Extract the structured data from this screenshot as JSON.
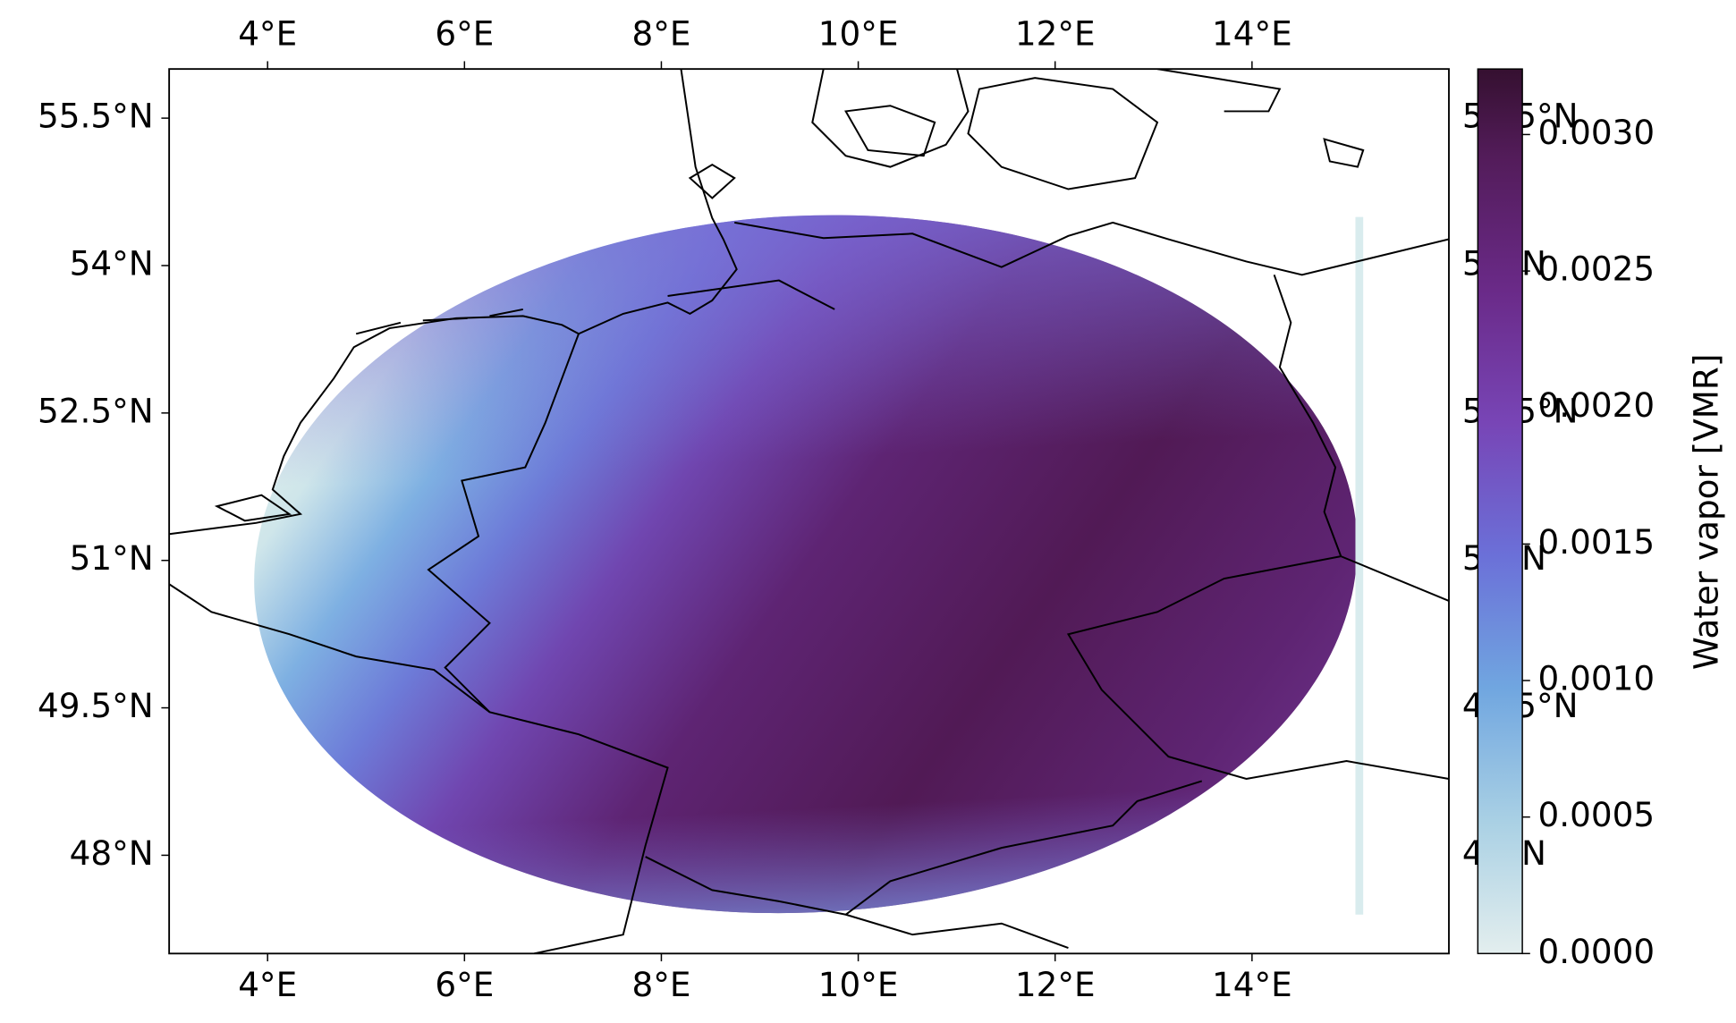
{
  "chart_data": {
    "type": "map",
    "xlim": [
      3,
      16
    ],
    "ylim": [
      47,
      56
    ],
    "xticks": [
      {
        "value": 4,
        "label": "4°E"
      },
      {
        "value": 6,
        "label": "6°E"
      },
      {
        "value": 8,
        "label": "8°E"
      },
      {
        "value": 10,
        "label": "10°E"
      },
      {
        "value": 12,
        "label": "12°E"
      },
      {
        "value": 14,
        "label": "14°E"
      }
    ],
    "yticks": [
      {
        "value": 48,
        "label": "48°N"
      },
      {
        "value": 49.5,
        "label": "49.5°N"
      },
      {
        "value": 51,
        "label": "51°N"
      },
      {
        "value": 52.5,
        "label": "52.5°N"
      },
      {
        "value": 54,
        "label": "54°N"
      },
      {
        "value": 55.5,
        "label": "55.5°N"
      }
    ],
    "colorbar": {
      "label": "Water vapor [VMR]",
      "lim": [
        0,
        0.00324
      ],
      "ticks": [
        {
          "value": 0,
          "label": "0.0000"
        },
        {
          "value": 0.0005,
          "label": "0.0005"
        },
        {
          "value": 0.001,
          "label": "0.0010"
        },
        {
          "value": 0.0015,
          "label": "0.0015"
        },
        {
          "value": 0.002,
          "label": "0.0020"
        },
        {
          "value": 0.0025,
          "label": "0.0025"
        },
        {
          "value": 0.003,
          "label": "0.0030"
        }
      ]
    }
  }
}
